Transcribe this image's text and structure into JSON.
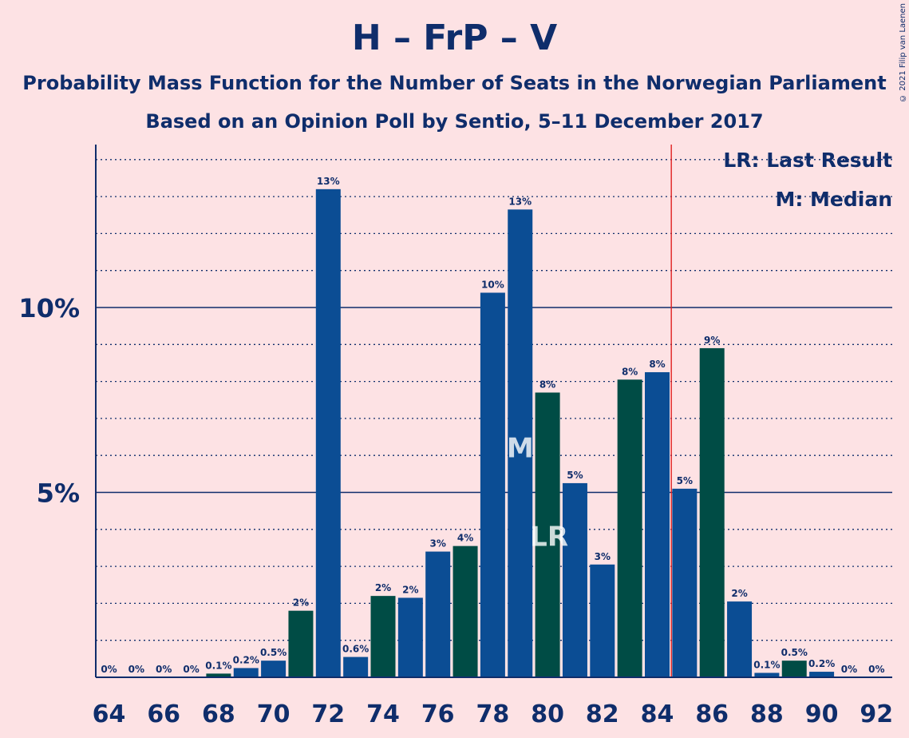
{
  "title": "H – FrP – V",
  "subtitle1": "Probability Mass Function for the Number of Seats in the Norwegian Parliament",
  "subtitle2": "Based on an Opinion Poll by Sentio, 5–11 December 2017",
  "copyright": "© 2021 Filip van Laenen",
  "legend": {
    "lr": "LR: Last Result",
    "m": "M: Median"
  },
  "colors": {
    "background": "#fde2e4",
    "blue_bar": "#0b4d94",
    "green_bar": "#004c45",
    "majority_line": "#e02020",
    "axis_text": "#0f2d6b"
  },
  "chart_data": {
    "type": "bar",
    "title": "H – FrP – V",
    "xlabel": "",
    "ylabel": "",
    "ylim": [
      0,
      14.4
    ],
    "yticks": [
      {
        "value": 5,
        "label": "5%"
      },
      {
        "value": 10,
        "label": "10%"
      }
    ],
    "xticks": [
      64,
      66,
      68,
      70,
      72,
      74,
      76,
      78,
      80,
      82,
      84,
      86,
      88,
      90,
      92
    ],
    "categories": [
      64,
      65,
      66,
      67,
      68,
      69,
      70,
      71,
      72,
      73,
      74,
      75,
      76,
      77,
      78,
      79,
      80,
      81,
      82,
      83,
      84,
      85,
      86,
      87,
      88,
      89,
      90,
      91,
      92
    ],
    "values": [
      0,
      0,
      0,
      0,
      0.1,
      0.25,
      0.45,
      1.8,
      13.2,
      0.55,
      2.2,
      2.15,
      3.4,
      3.55,
      10.4,
      12.65,
      7.7,
      5.25,
      3.05,
      8.05,
      8.25,
      5.1,
      8.9,
      2.05,
      0.12,
      0.45,
      0.15,
      0,
      0
    ],
    "labels": [
      "0%",
      "0%",
      "0%",
      "0%",
      "0.1%",
      "0.2%",
      "0.5%",
      "2%",
      "13%",
      "0.6%",
      "2%",
      "2%",
      "3%",
      "4%",
      "10%",
      "13%",
      "8%",
      "5%",
      "3%",
      "8%",
      "8%",
      "5%",
      "9%",
      "2%",
      "0.1%",
      "0.5%",
      "0.2%",
      "0%",
      "0%"
    ],
    "bar_colors": [
      "blue",
      "green",
      "blue",
      "green",
      "green",
      "blue",
      "blue",
      "green",
      "blue",
      "blue",
      "green",
      "blue",
      "blue",
      "green",
      "blue",
      "blue",
      "green",
      "blue",
      "blue",
      "green",
      "blue",
      "blue",
      "green",
      "blue",
      "blue",
      "green",
      "blue",
      "blue",
      "blue"
    ],
    "median": {
      "seat": 79,
      "label": "M"
    },
    "last_result": {
      "seat": 80,
      "label": "LR"
    },
    "majority_threshold": 85
  }
}
